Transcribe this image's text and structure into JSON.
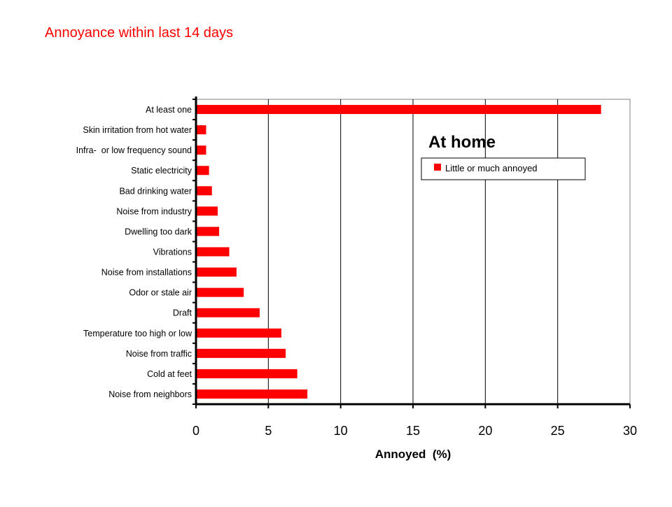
{
  "slide": {
    "title": "Annoyance within last 14 days"
  },
  "chart_data": {
    "type": "bar",
    "orientation": "horizontal",
    "title": "At home",
    "xlabel": "Annoyed  (%)",
    "ylabel": "",
    "xlim": [
      0,
      30
    ],
    "x_ticks": [
      "0",
      "5",
      "10",
      "15",
      "20",
      "25",
      "30"
    ],
    "grid": "vertical",
    "legend": {
      "position": "top-right",
      "entries": [
        "Little or much annoyed"
      ]
    },
    "categories": [
      "At least one",
      "Skin irritation from hot water",
      "Infra-  or low frequency sound",
      "Static electricity",
      "Bad drinking water",
      "Noise from industry",
      "Dwelling too dark",
      "Vibrations",
      "Noise from installations",
      "Odor or stale air",
      "Draft",
      "Temperature too high or low",
      "Noise from traffic",
      "Cold at feet",
      "Noise from neighbors"
    ],
    "series": [
      {
        "name": "Little or much annoyed",
        "color": "#ff0000",
        "values": [
          28,
          0.7,
          0.7,
          0.9,
          1.1,
          1.5,
          1.6,
          2.3,
          2.8,
          3.3,
          4.4,
          5.9,
          6.2,
          7.0,
          7.7
        ]
      }
    ]
  }
}
